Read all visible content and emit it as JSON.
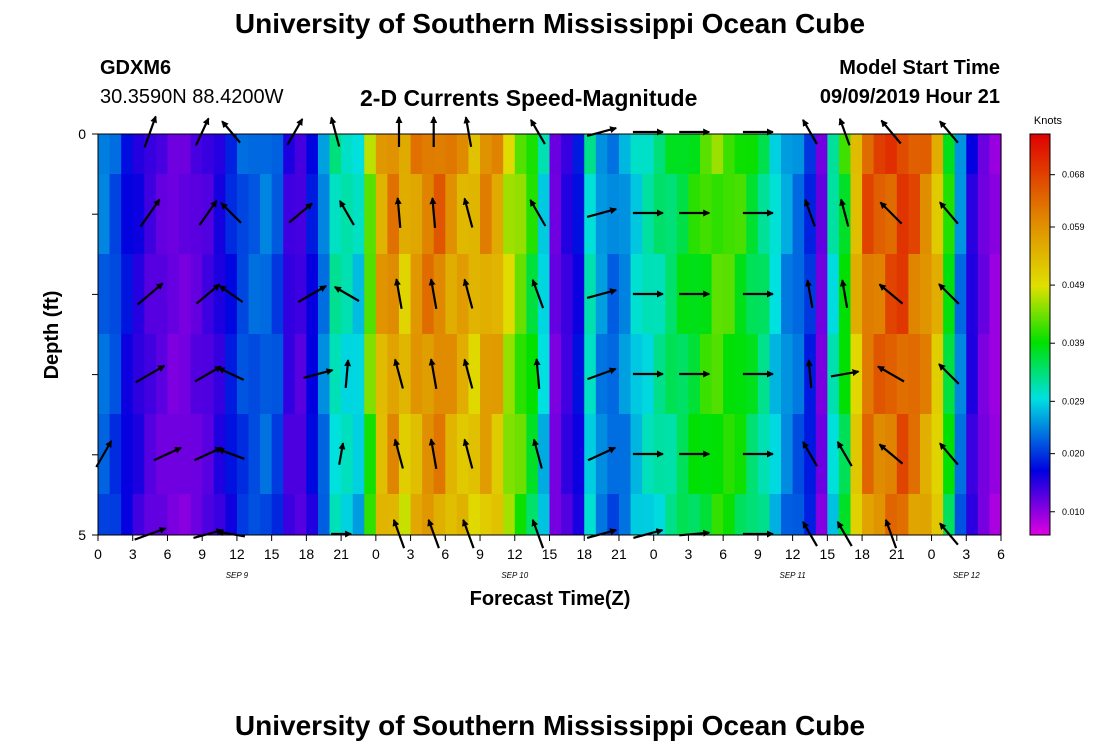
{
  "header": {
    "title": "University of Southern Mississippi Ocean Cube",
    "station": "GDXM6",
    "coords": "30.3590N 88.4200W",
    "subtitle": "2-D Currents Speed-Magnitude",
    "start_label": "Model Start Time",
    "start_value": "09/09/2019 Hour 21"
  },
  "footer": {
    "title": "University of Southern Mississippi Ocean Cube"
  },
  "chart_data": {
    "type": "heatmap",
    "title": "2-D Currents Speed-Magnitude",
    "xlabel": "Forecast Time(Z)",
    "ylabel": "Depth (ft)",
    "x_start_hour": 0,
    "x_end_hour": 78,
    "x_tick_step_hours": 3,
    "x_ticks": [
      "0",
      "3",
      "6",
      "9",
      "12",
      "15",
      "18",
      "21",
      "0",
      "3",
      "6",
      "9",
      "12",
      "15",
      "18",
      "21",
      "0",
      "3",
      "6",
      "9",
      "12",
      "15",
      "18",
      "21",
      "0",
      "3",
      "6"
    ],
    "date_labels": [
      {
        "text": "SEP 9",
        "hour": 12
      },
      {
        "text": "SEP 10",
        "hour": 36
      },
      {
        "text": "SEP 11",
        "hour": 60
      },
      {
        "text": "SEP 12",
        "hour": 75
      }
    ],
    "y_range": [
      0,
      5
    ],
    "y_ticks": [
      "0",
      "",
      "",
      "",
      "",
      "5"
    ],
    "depth_rows": 5,
    "colorbar": {
      "label": "Knots",
      "ticks": [
        "0.068",
        "0.059",
        "0.049",
        "0.039",
        "0.029",
        "0.020",
        "0.010"
      ],
      "range": [
        0.006,
        0.075
      ],
      "colors": [
        "#e000e0",
        "#0000e0",
        "#00e0e0",
        "#00e000",
        "#e0e000",
        "#e08000",
        "#e00000"
      ]
    },
    "speed_by_hour": [
      0.024,
      0.022,
      0.018,
      0.016,
      0.014,
      0.013,
      0.012,
      0.012,
      0.013,
      0.014,
      0.016,
      0.019,
      0.022,
      0.023,
      0.024,
      0.022,
      0.015,
      0.014,
      0.018,
      0.025,
      0.033,
      0.032,
      0.03,
      0.045,
      0.058,
      0.062,
      0.055,
      0.06,
      0.063,
      0.064,
      0.06,
      0.058,
      0.055,
      0.06,
      0.058,
      0.049,
      0.045,
      0.04,
      0.03,
      0.012,
      0.015,
      0.018,
      0.032,
      0.026,
      0.024,
      0.026,
      0.03,
      0.032,
      0.034,
      0.036,
      0.038,
      0.04,
      0.042,
      0.044,
      0.043,
      0.041,
      0.038,
      0.035,
      0.03,
      0.026,
      0.024,
      0.02,
      0.012,
      0.032,
      0.04,
      0.055,
      0.066,
      0.066,
      0.068,
      0.07,
      0.066,
      0.062,
      0.055,
      0.04,
      0.025,
      0.016,
      0.012,
      0.01
    ],
    "vector_rows": [
      [
        {
          "h": 4.5,
          "dir": 20,
          "len": 33
        },
        {
          "h": 9.0,
          "dir": 25,
          "len": 30
        },
        {
          "h": 11.5,
          "dir": -40,
          "len": 28
        },
        {
          "h": 17.0,
          "dir": 30,
          "len": 30
        },
        {
          "h": 20.5,
          "dir": -15,
          "len": 30
        },
        {
          "h": 26.0,
          "dir": 0,
          "len": 30
        },
        {
          "h": 29.0,
          "dir": 0,
          "len": 30
        },
        {
          "h": 32.0,
          "dir": -10,
          "len": 30
        },
        {
          "h": 38.0,
          "dir": -30,
          "len": 28
        },
        {
          "h": 43.5,
          "dir": 75,
          "len": 30
        },
        {
          "h": 47.5,
          "dir": 90,
          "len": 30
        },
        {
          "h": 51.5,
          "dir": 90,
          "len": 30
        },
        {
          "h": 57.0,
          "dir": 90,
          "len": 30
        },
        {
          "h": 61.5,
          "dir": -30,
          "len": 28
        },
        {
          "h": 64.5,
          "dir": -20,
          "len": 28
        },
        {
          "h": 68.5,
          "dir": -40,
          "len": 30
        },
        {
          "h": 73.5,
          "dir": -40,
          "len": 28
        }
      ],
      [
        {
          "h": 4.5,
          "dir": 35,
          "len": 33
        },
        {
          "h": 9.5,
          "dir": 35,
          "len": 30
        },
        {
          "h": 11.5,
          "dir": -45,
          "len": 28
        },
        {
          "h": 17.5,
          "dir": 50,
          "len": 30
        },
        {
          "h": 21.5,
          "dir": -30,
          "len": 28
        },
        {
          "h": 26.0,
          "dir": -5,
          "len": 30
        },
        {
          "h": 29.0,
          "dir": -5,
          "len": 30
        },
        {
          "h": 32.0,
          "dir": -15,
          "len": 30
        },
        {
          "h": 38.0,
          "dir": -30,
          "len": 30
        },
        {
          "h": 43.5,
          "dir": 75,
          "len": 30
        },
        {
          "h": 47.5,
          "dir": 90,
          "len": 30
        },
        {
          "h": 51.5,
          "dir": 90,
          "len": 30
        },
        {
          "h": 57.0,
          "dir": 90,
          "len": 30
        },
        {
          "h": 61.5,
          "dir": -20,
          "len": 28
        },
        {
          "h": 64.5,
          "dir": -15,
          "len": 28
        },
        {
          "h": 68.5,
          "dir": -45,
          "len": 30
        },
        {
          "h": 73.5,
          "dir": -40,
          "len": 28
        }
      ],
      [
        {
          "h": 4.5,
          "dir": 50,
          "len": 33
        },
        {
          "h": 9.5,
          "dir": 50,
          "len": 30
        },
        {
          "h": 11.5,
          "dir": -55,
          "len": 28
        },
        {
          "h": 18.5,
          "dir": 60,
          "len": 32
        },
        {
          "h": 21.5,
          "dir": -60,
          "len": 28
        },
        {
          "h": 26.0,
          "dir": -10,
          "len": 30
        },
        {
          "h": 29.0,
          "dir": -10,
          "len": 30
        },
        {
          "h": 32.0,
          "dir": -15,
          "len": 30
        },
        {
          "h": 38.0,
          "dir": -20,
          "len": 30
        },
        {
          "h": 43.5,
          "dir": 75,
          "len": 30
        },
        {
          "h": 47.5,
          "dir": 90,
          "len": 30
        },
        {
          "h": 51.5,
          "dir": 90,
          "len": 30
        },
        {
          "h": 57.0,
          "dir": 90,
          "len": 30
        },
        {
          "h": 61.5,
          "dir": -10,
          "len": 28
        },
        {
          "h": 64.5,
          "dir": -10,
          "len": 28
        },
        {
          "h": 68.5,
          "dir": -50,
          "len": 30
        },
        {
          "h": 73.5,
          "dir": -45,
          "len": 28
        }
      ],
      [
        {
          "h": 4.5,
          "dir": 60,
          "len": 33
        },
        {
          "h": 9.5,
          "dir": 60,
          "len": 30
        },
        {
          "h": 11.5,
          "dir": -65,
          "len": 28
        },
        {
          "h": 19.0,
          "dir": 75,
          "len": 30
        },
        {
          "h": 21.5,
          "dir": 5,
          "len": 28
        },
        {
          "h": 26.0,
          "dir": -15,
          "len": 30
        },
        {
          "h": 29.0,
          "dir": -10,
          "len": 30
        },
        {
          "h": 32.0,
          "dir": -15,
          "len": 30
        },
        {
          "h": 38.0,
          "dir": -5,
          "len": 30
        },
        {
          "h": 43.5,
          "dir": 70,
          "len": 30
        },
        {
          "h": 47.5,
          "dir": 90,
          "len": 30
        },
        {
          "h": 51.5,
          "dir": 90,
          "len": 30
        },
        {
          "h": 57.0,
          "dir": 90,
          "len": 30
        },
        {
          "h": 61.5,
          "dir": -5,
          "len": 28
        },
        {
          "h": 64.5,
          "dir": 80,
          "len": 28
        },
        {
          "h": 68.5,
          "dir": -60,
          "len": 30
        },
        {
          "h": 73.5,
          "dir": -45,
          "len": 28
        }
      ],
      [
        {
          "h": 0.5,
          "dir": 30,
          "len": 30
        },
        {
          "h": 6.0,
          "dir": 65,
          "len": 30
        },
        {
          "h": 9.5,
          "dir": 65,
          "len": 30
        },
        {
          "h": 11.5,
          "dir": -70,
          "len": 28
        },
        {
          "h": 21.0,
          "dir": 10,
          "len": 22
        },
        {
          "h": 26.0,
          "dir": -15,
          "len": 30
        },
        {
          "h": 29.0,
          "dir": -10,
          "len": 30
        },
        {
          "h": 32.0,
          "dir": -15,
          "len": 30
        },
        {
          "h": 38.0,
          "dir": -15,
          "len": 30
        },
        {
          "h": 43.5,
          "dir": 65,
          "len": 30
        },
        {
          "h": 47.5,
          "dir": 90,
          "len": 30
        },
        {
          "h": 51.5,
          "dir": 90,
          "len": 30
        },
        {
          "h": 57.0,
          "dir": 90,
          "len": 30
        },
        {
          "h": 61.5,
          "dir": -30,
          "len": 28
        },
        {
          "h": 64.5,
          "dir": -30,
          "len": 28
        },
        {
          "h": 68.5,
          "dir": -50,
          "len": 30
        },
        {
          "h": 73.5,
          "dir": -40,
          "len": 28
        }
      ],
      [
        {
          "h": 4.5,
          "dir": 70,
          "len": 33
        },
        {
          "h": 9.5,
          "dir": 75,
          "len": 30
        },
        {
          "h": 11.5,
          "dir": -80,
          "len": 28
        },
        {
          "h": 21.0,
          "dir": 90,
          "len": 20
        },
        {
          "h": 26.0,
          "dir": -20,
          "len": 30
        },
        {
          "h": 29.0,
          "dir": -20,
          "len": 30
        },
        {
          "h": 32.0,
          "dir": -20,
          "len": 30
        },
        {
          "h": 38.0,
          "dir": -20,
          "len": 30
        },
        {
          "h": 43.5,
          "dir": 75,
          "len": 30
        },
        {
          "h": 47.5,
          "dir": 75,
          "len": 30
        },
        {
          "h": 51.5,
          "dir": 85,
          "len": 30
        },
        {
          "h": 57.0,
          "dir": 90,
          "len": 30
        },
        {
          "h": 61.5,
          "dir": -30,
          "len": 28
        },
        {
          "h": 64.5,
          "dir": -30,
          "len": 28
        },
        {
          "h": 68.5,
          "dir": -20,
          "len": 30
        },
        {
          "h": 73.5,
          "dir": -40,
          "len": 28
        }
      ]
    ]
  }
}
